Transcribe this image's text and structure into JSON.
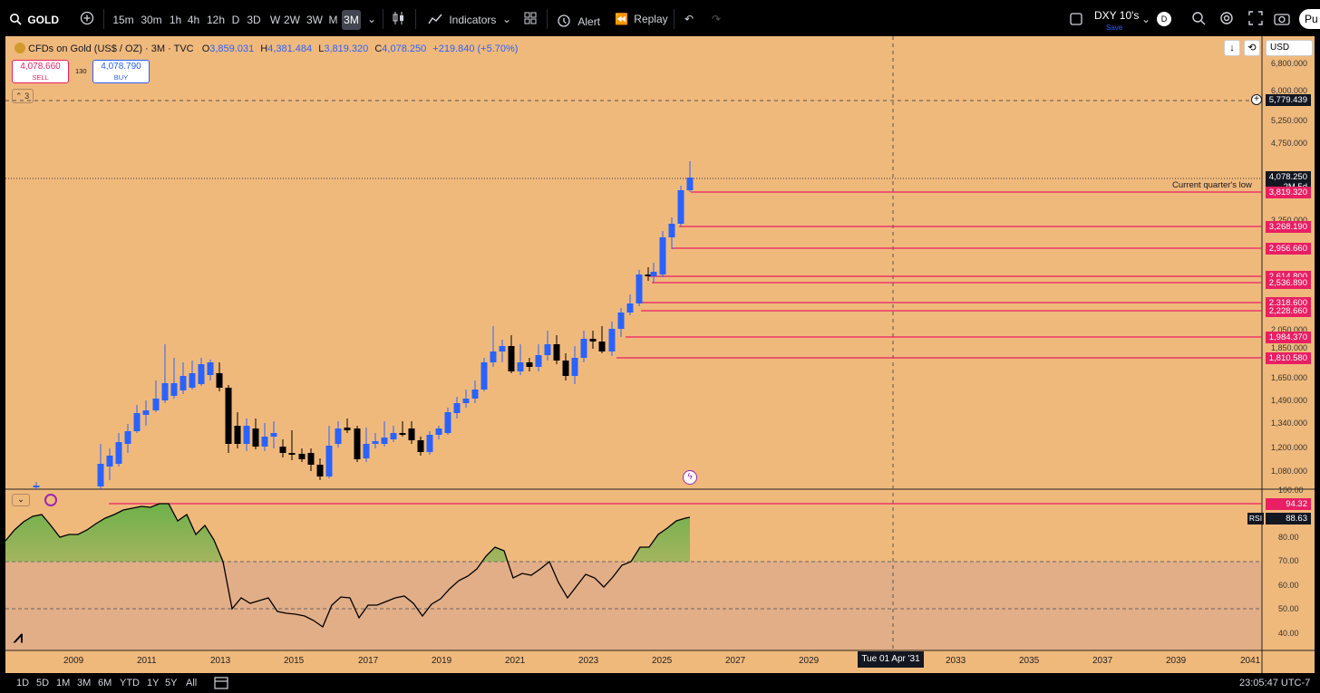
{
  "toolbar": {
    "symbol": "GOLD",
    "timeframes": [
      "15m",
      "30m",
      "1h",
      "4h",
      "12h",
      "D",
      "3D",
      "W",
      "2W",
      "3W",
      "M",
      "3M"
    ],
    "active_timeframe": "3M",
    "indicators_label": "Indicators",
    "alert_label": "Alert",
    "replay_label": "Replay",
    "layout_name": "DXY 10's",
    "layout_sub": "Save",
    "avatar": "D",
    "publish": "Pu"
  },
  "legend": {
    "title": "CFDs on Gold (US$ / OZ) · 3M · TVC",
    "o_label": "O",
    "o": "3,859.031",
    "h_label": "H",
    "h": "4,381.484",
    "l_label": "L",
    "l": "3,819.320",
    "c_label": "C",
    "c": "4,078.250",
    "change": "+219.840 (+5.70%)",
    "sell_price": "4,078.660",
    "sell_label": "SELL",
    "spread": "130",
    "buy_price": "4,078.790",
    "buy_label": "BUY",
    "collapsed_count": "3"
  },
  "currency": "USD",
  "annotation": "Current quarter's low",
  "price_axis": {
    "labels": [
      "6,800.000",
      "6,000.000",
      "5,250.000",
      "4,750.000",
      "3,250.000",
      "2,050.000",
      "1,850.000",
      "1,650.000",
      "1,490.000",
      "1,340.000",
      "1,200.000",
      "1,080.000"
    ],
    "crosshair_price": "5,779.439",
    "last_price": "4,078.250",
    "countdown": "2M 5d"
  },
  "levels": [
    "3,819.320",
    "3,268.190",
    "2,956.660",
    "2,614.800",
    "2,536.890",
    "2,318.600",
    "2,228.660",
    "1,984.370",
    "1,810.580"
  ],
  "rsi": {
    "label": "RSI",
    "value": "88.63",
    "line_level": "94.32",
    "axis": [
      "100.00",
      "80.00",
      "70.00",
      "60.00",
      "50.00",
      "40.00"
    ]
  },
  "time_axis": {
    "labels": [
      "2009",
      "2011",
      "2013",
      "2015",
      "2017",
      "2019",
      "2021",
      "2023",
      "2025",
      "2027",
      "2029",
      "2033",
      "2035",
      "2037",
      "2039",
      "2041"
    ],
    "crosshair_date": "Tue 01 Apr '31"
  },
  "bottom": {
    "ranges": [
      "1D",
      "5D",
      "1M",
      "3M",
      "6M",
      "YTD",
      "1Y",
      "5Y",
      "All"
    ],
    "clock": "23:05:47 UTC-7"
  },
  "colors": {
    "background": "#f0b97c",
    "up": "#2962ff",
    "down": "#000000",
    "level_line": "#e91e63",
    "rsi_fill": "#5fb045"
  }
}
